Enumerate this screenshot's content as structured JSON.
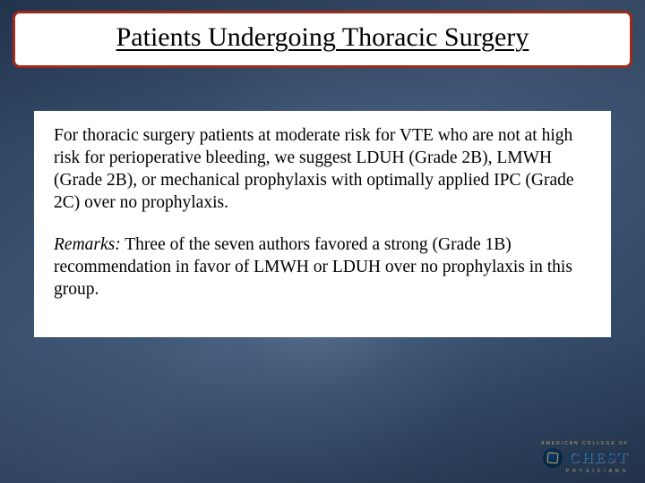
{
  "title": "Patients Undergoing Thoracic Surgery",
  "body": {
    "para1": "For thoracic surgery patients at moderate risk for VTE who are not at high risk for perioperative bleeding, we suggest LDUH (Grade 2B), LMWH (Grade 2B), or mechanical prophylaxis with optimally applied IPC (Grade 2C) over no prophylaxis.",
    "remarks_label": "Remarks:",
    "remarks_text": " Three of the seven authors favored a strong (Grade 1B) recommendation in favor of LMWH or LDUH over no prophylaxis in this group."
  },
  "footer": {
    "top": "AMERICAN COLLEGE OF",
    "word": "CHEST",
    "sub": "PHYSICIANS"
  },
  "style": {
    "title_border_color": "#a02a1a",
    "title_font_size_pt": 30,
    "body_font_size_pt": 19.5,
    "background_gradient": [
      "#2a3f5a",
      "#3a5270",
      "#4a6282"
    ],
    "text_color": "#000000",
    "footer_gold": "#c7a86a",
    "footer_navy": "#0a3a66"
  }
}
